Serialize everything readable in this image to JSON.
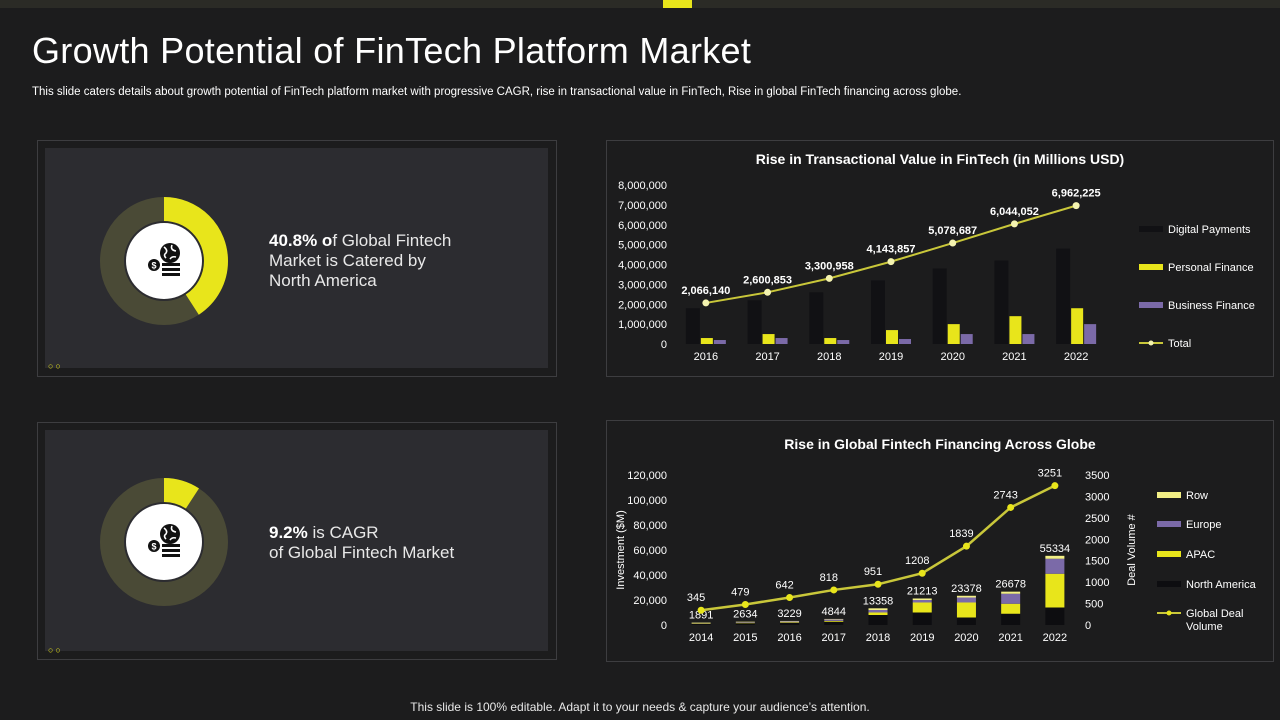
{
  "title": "Growth Potential of FinTech Platform Market",
  "subtitle": "This slide caters details about growth potential of FinTech platform market with progressive CAGR, rise in transactional value in FinTech, Rise in global FinTech financing across globe.",
  "footer": "This slide is 100% editable. Adapt it to your needs & capture your audience’s attention.",
  "colors": {
    "accent": "#e8e51b",
    "donut_bg": "#4a4a36",
    "purple": "#7b6aa8",
    "dark_bar": "#111114"
  },
  "stat1": {
    "value": "40.8%",
    "pre": " o",
    "text": "f Global Fintech",
    "line2": "Market is Catered by",
    "line3": "North America",
    "fraction": 0.408
  },
  "stat2": {
    "value": "9.2%",
    "text": " is CAGR",
    "line2": "of Global Fintech Market",
    "fraction": 0.092
  },
  "chart_data": [
    {
      "type": "bar",
      "title": "Rise in Transactional Value in FinTech (in Millions USD)",
      "categories": [
        "2016",
        "2017",
        "2018",
        "2019",
        "2020",
        "2021",
        "2022"
      ],
      "ylim": [
        0,
        8000000
      ],
      "yticks": [
        "0",
        "1,000,000",
        "2,000,000",
        "3,000,000",
        "4,000,000",
        "5,000,000",
        "6,000,000",
        "7,000,000",
        "8,000,000"
      ],
      "series": [
        {
          "name": "Digital Payments",
          "values": [
            1800000,
            2200000,
            2600000,
            3200000,
            3800000,
            4200000,
            4800000
          ]
        },
        {
          "name": "Personal Finance",
          "values": [
            300000,
            500000,
            300000,
            700000,
            1000000,
            1400000,
            1800000
          ]
        },
        {
          "name": "Business Finance",
          "values": [
            200000,
            300000,
            200000,
            250000,
            500000,
            500000,
            1000000
          ]
        }
      ],
      "line": {
        "name": "Total",
        "values": [
          2066140,
          2600853,
          3300958,
          4143857,
          5078687,
          6044052,
          6962225
        ],
        "labels": [
          "2,066,140",
          "2,600,853",
          "3,300,958",
          "4,143,857",
          "5,078,687",
          "6,044,052",
          "6,962,225"
        ]
      },
      "legend": [
        "Digital Payments",
        "Personal Finance",
        "Business Finance",
        "Total"
      ]
    },
    {
      "type": "bar",
      "title": "Rise in Global Fintech Financing Across Globe",
      "categories": [
        "2014",
        "2015",
        "2016",
        "2017",
        "2018",
        "2019",
        "2020",
        "2021",
        "2022"
      ],
      "ylabel": "Investment ($M)",
      "ylabel_right": "Deal Volume #",
      "ylim": [
        0,
        120000
      ],
      "yticks": [
        "0",
        "20,000",
        "40,000",
        "60,000",
        "80,000",
        "100,000",
        "120,000"
      ],
      "ylim_right": [
        0,
        3500
      ],
      "yticks_right": [
        "0",
        "500",
        "1000",
        "1500",
        "2000",
        "2500",
        "3000",
        "3500"
      ],
      "totals": [
        1891,
        2634,
        3229,
        4844,
        13358,
        21213,
        23378,
        26678,
        55334
      ],
      "series": [
        {
          "name": "North America",
          "values": [
            1000,
            1400,
            1700,
            2600,
            8000,
            10000,
            6000,
            9000,
            14000
          ]
        },
        {
          "name": "APAC",
          "values": [
            300,
            400,
            500,
            700,
            2000,
            8000,
            12000,
            8000,
            27000
          ]
        },
        {
          "name": "Europe",
          "values": [
            391,
            634,
            829,
            1344,
            2000,
            2000,
            4000,
            8000,
            12000
          ]
        },
        {
          "name": "Row",
          "values": [
            200,
            200,
            200,
            200,
            1358,
            1213,
            1378,
            1678,
            2334
          ]
        }
      ],
      "line": {
        "name": "Global Deal Volume",
        "values": [
          345,
          479,
          642,
          818,
          951,
          1208,
          1839,
          2743,
          3251
        ]
      },
      "legend": [
        "Row",
        "Europe",
        "APAC",
        "North America",
        "Global Deal\nVolume"
      ]
    }
  ]
}
